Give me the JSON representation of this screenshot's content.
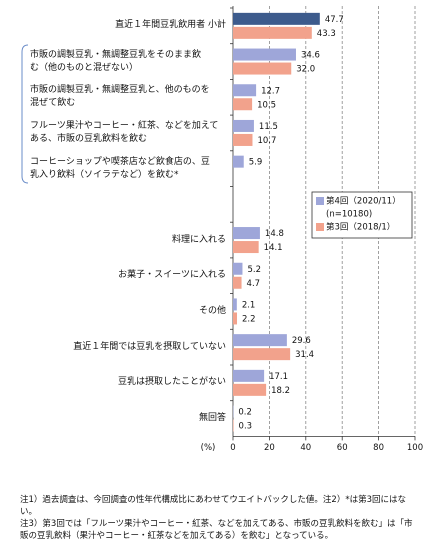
{
  "chart_data": {
    "type": "barh",
    "categories": [
      "直近１年間豆乳飲用者 小計",
      "市販の調製豆乳・無調整豆乳をそのまま飲\nむ（他のものと混ぜない）",
      "市販の調製豆乳・無調整豆乳と、他のものを\n混ぜて飲む",
      "フルーツ果汁やコーヒー・紅茶、などを加えて\nある、市販の豆乳飲料を飲む",
      "コーヒーショップや喫茶店など飲食店の、豆\n乳入り飲料（ソイラテなど）を飲む*",
      null,
      "料理に入れる",
      "お菓子・スイーツに入れる",
      "その他",
      "直近１年間では豆乳を摂取していない",
      "豆乳は摂取したことがない",
      "無回答"
    ],
    "series": [
      {
        "name": "第4回（2020/11）",
        "legend_note": "(n=10180)",
        "color": "#9ea6d9",
        "colors": [
          "#3d5b8c",
          "#9ea6d9",
          "#9ea6d9",
          "#9ea6d9",
          "#9ea6d9",
          "#9ea6d9",
          "#9ea6d9",
          "#9ea6d9",
          "#9ea6d9",
          "#9ea6d9",
          "#9ea6d9",
          "#9ea6d9"
        ],
        "values": [
          47.7,
          34.6,
          12.7,
          11.5,
          5.9,
          null,
          14.8,
          5.2,
          2.1,
          29.6,
          17.1,
          0.2
        ]
      },
      {
        "name": "第3回（2018/1）",
        "color": "#f2a28c",
        "values": [
          43.3,
          32.0,
          10.5,
          10.7,
          null,
          null,
          14.1,
          4.7,
          2.2,
          31.4,
          18.2,
          0.3
        ],
        "value_labels": [
          "43.3",
          "32.0",
          "10.5",
          "10.7",
          null,
          null,
          "14.1",
          "4.7",
          "2.2",
          "31.4",
          "18.2",
          "0.3"
        ]
      }
    ],
    "x_label": "(%)",
    "xlim": [
      0,
      100
    ],
    "xticks": [
      0,
      20,
      40,
      60,
      80,
      100
    ],
    "grid": true,
    "notes": [
      "注1）過去調査は、今回調査の性年代構成比にあわせてウエイトバックした値。注2）*は第3回にはない。",
      "注3）第3回では「フルーツ果汁やコーヒー・紅茶、などを加えてある、市販の豆乳飲料を飲む」は「市販の豆乳飲料（果汁やコーヒー・紅茶などを加えてある）を飲む」となっている。"
    ]
  }
}
